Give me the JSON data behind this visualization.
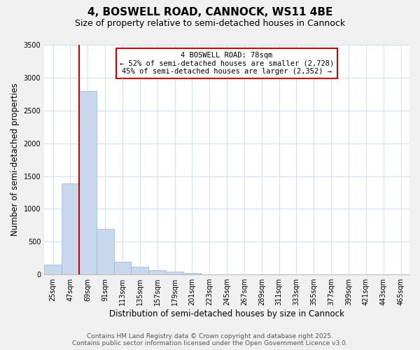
{
  "title": "4, BOSWELL ROAD, CANNOCK, WS11 4BE",
  "subtitle": "Size of property relative to semi-detached houses in Cannock",
  "xlabel": "Distribution of semi-detached houses by size in Cannock",
  "ylabel": "Number of semi-detached properties",
  "categories": [
    "25sqm",
    "47sqm",
    "69sqm",
    "91sqm",
    "113sqm",
    "135sqm",
    "157sqm",
    "179sqm",
    "201sqm",
    "223sqm",
    "245sqm",
    "267sqm",
    "289sqm",
    "311sqm",
    "333sqm",
    "355sqm",
    "377sqm",
    "399sqm",
    "421sqm",
    "443sqm",
    "465sqm"
  ],
  "values": [
    150,
    1390,
    2800,
    700,
    195,
    115,
    70,
    45,
    20,
    0,
    0,
    0,
    0,
    0,
    0,
    0,
    0,
    0,
    0,
    0,
    0
  ],
  "bar_color": "#c8d8ec",
  "bar_edge_color": "#9ab4d4",
  "fig_background_color": "#f0f0f0",
  "plot_background_color": "#ffffff",
  "grid_color": "#d0e0f0",
  "vline_color": "#cc0000",
  "annotation_box_edge_color": "#cc0000",
  "property_label": "4 BOSWELL ROAD: 78sqm",
  "annotation_line1": "← 52% of semi-detached houses are smaller (2,728)",
  "annotation_line2": "45% of semi-detached houses are larger (2,352) →",
  "ylim": [
    0,
    3500
  ],
  "yticks": [
    0,
    500,
    1000,
    1500,
    2000,
    2500,
    3000,
    3500
  ],
  "vline_x": 1.5,
  "title_fontsize": 11,
  "subtitle_fontsize": 9,
  "axis_label_fontsize": 8.5,
  "tick_fontsize": 7,
  "annotation_fontsize": 7.5,
  "footer_fontsize": 6.5,
  "footer_line1": "Contains HM Land Registry data © Crown copyright and database right 2025.",
  "footer_line2": "Contains public sector information licensed under the Open Government Licence v3.0."
}
